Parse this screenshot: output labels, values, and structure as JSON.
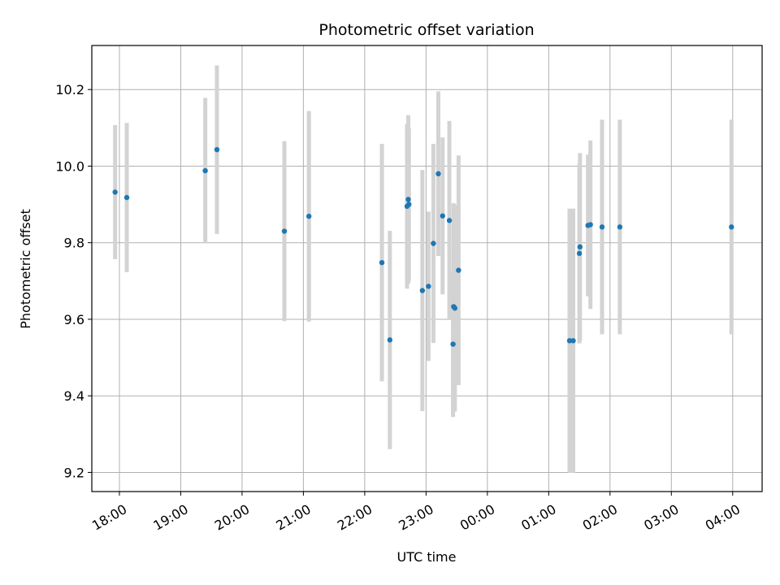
{
  "chart_data": {
    "type": "scatter",
    "title": "Photometric offset variation",
    "xlabel": "UTC time",
    "ylabel": "Photometric offset",
    "grid": true,
    "x_tick_labels": [
      "18:00",
      "19:00",
      "20:00",
      "21:00",
      "22:00",
      "23:00",
      "00:00",
      "01:00",
      "02:00",
      "03:00",
      "04:00"
    ],
    "x_tick_hours": [
      18,
      19,
      20,
      21,
      22,
      23,
      24,
      25,
      26,
      27,
      28
    ],
    "y_ticks": [
      9.2,
      9.4,
      9.6,
      9.8,
      10.0,
      10.2
    ],
    "y_tick_labels": [
      "9.2",
      "9.4",
      "9.6",
      "9.8",
      "10.0",
      "10.2"
    ],
    "xlim_hours": [
      17.55,
      28.48
    ],
    "ylim": [
      9.15,
      10.315
    ],
    "point_color": "#1f77b4",
    "errorbar_color": "#d3d3d3",
    "points": [
      {
        "t": 17.93,
        "y": 9.932,
        "err": 0.175
      },
      {
        "t": 18.12,
        "y": 9.918,
        "err": 0.195
      },
      {
        "t": 19.4,
        "y": 9.988,
        "err": 0.19
      },
      {
        "t": 19.59,
        "y": 10.043,
        "err": 0.22
      },
      {
        "t": 20.69,
        "y": 9.83,
        "err": 0.235
      },
      {
        "t": 21.09,
        "y": 9.869,
        "err": 0.275
      },
      {
        "t": 22.28,
        "y": 9.748,
        "err": 0.31
      },
      {
        "t": 22.41,
        "y": 9.546,
        "err": 0.285
      },
      {
        "t": 22.69,
        "y": 9.895,
        "err": 0.215
      },
      {
        "t": 22.71,
        "y": 9.913,
        "err": 0.22
      },
      {
        "t": 22.72,
        "y": 9.9,
        "err": 0.2
      },
      {
        "t": 22.94,
        "y": 9.675,
        "err": 0.315
      },
      {
        "t": 23.04,
        "y": 9.686,
        "err": 0.195
      },
      {
        "t": 23.12,
        "y": 9.798,
        "err": 0.26
      },
      {
        "t": 23.2,
        "y": 9.98,
        "err": 0.215
      },
      {
        "t": 23.27,
        "y": 9.87,
        "err": 0.205
      },
      {
        "t": 23.38,
        "y": 9.858,
        "err": 0.26
      },
      {
        "t": 23.44,
        "y": 9.535,
        "err": 0.19
      },
      {
        "t": 23.45,
        "y": 9.633,
        "err": 0.27
      },
      {
        "t": 23.47,
        "y": 9.629,
        "err": 0.27
      },
      {
        "t": 23.53,
        "y": 9.728,
        "err": 0.3
      },
      {
        "t": 25.34,
        "y": 9.544,
        "err": 0.345
      },
      {
        "t": 25.4,
        "y": 9.544,
        "err": 0.345
      },
      {
        "t": 25.5,
        "y": 9.772,
        "err": 0.235
      },
      {
        "t": 25.51,
        "y": 9.789,
        "err": 0.245
      },
      {
        "t": 25.64,
        "y": 9.845,
        "err": 0.185
      },
      {
        "t": 25.68,
        "y": 9.847,
        "err": 0.22
      },
      {
        "t": 25.87,
        "y": 9.841,
        "err": 0.28
      },
      {
        "t": 26.16,
        "y": 9.841,
        "err": 0.28
      },
      {
        "t": 27.98,
        "y": 9.841,
        "err": 0.28
      }
    ]
  }
}
